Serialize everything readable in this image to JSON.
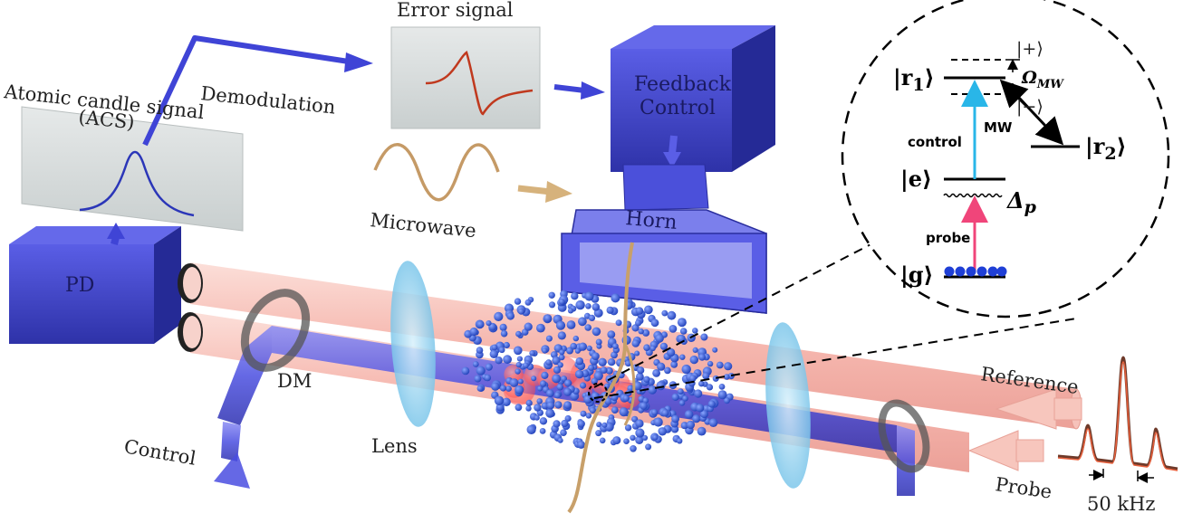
{
  "labels": {
    "error_signal": "Error signal",
    "demodulation": "Demodulation",
    "acs_line1": "Atomic candle signal",
    "acs_line2": "(ACS)",
    "feedback_line1": "Feedback",
    "feedback_line2": "Control",
    "microwave": "Microwave",
    "horn": "Horn",
    "pd": "PD",
    "dm": "DM",
    "lens": "Lens",
    "control_beam": "Control",
    "reference": "Reference",
    "probe_beam": "Probe",
    "spacing": "50 kHz"
  },
  "level_diagram": {
    "r1": "|r",
    "r1_sub": "1",
    "r2": "|r",
    "r2_sub": "2",
    "plus": "|+⟩",
    "minus": "|−⟩",
    "omega": "Ω",
    "omega_sub": "MW",
    "mw": "MW",
    "control": "control",
    "e": "|e⟩",
    "delta": "Δ",
    "delta_sub": "p",
    "probe": "probe",
    "g": "|g⟩",
    "ket_close": "⟩"
  },
  "colors": {
    "box_blue": "#3a3ec8",
    "beam_pink": "#f4b7ae",
    "beam_blue": "#4a4ee0",
    "atom_blue": "#2b4fd6",
    "atom_red": "#ff5a5a",
    "control_arrow": "#29b6e8",
    "probe_arrow": "#f0457a",
    "panel_gray": "#d9dddd",
    "lens_blue": "#a9dcf2"
  }
}
